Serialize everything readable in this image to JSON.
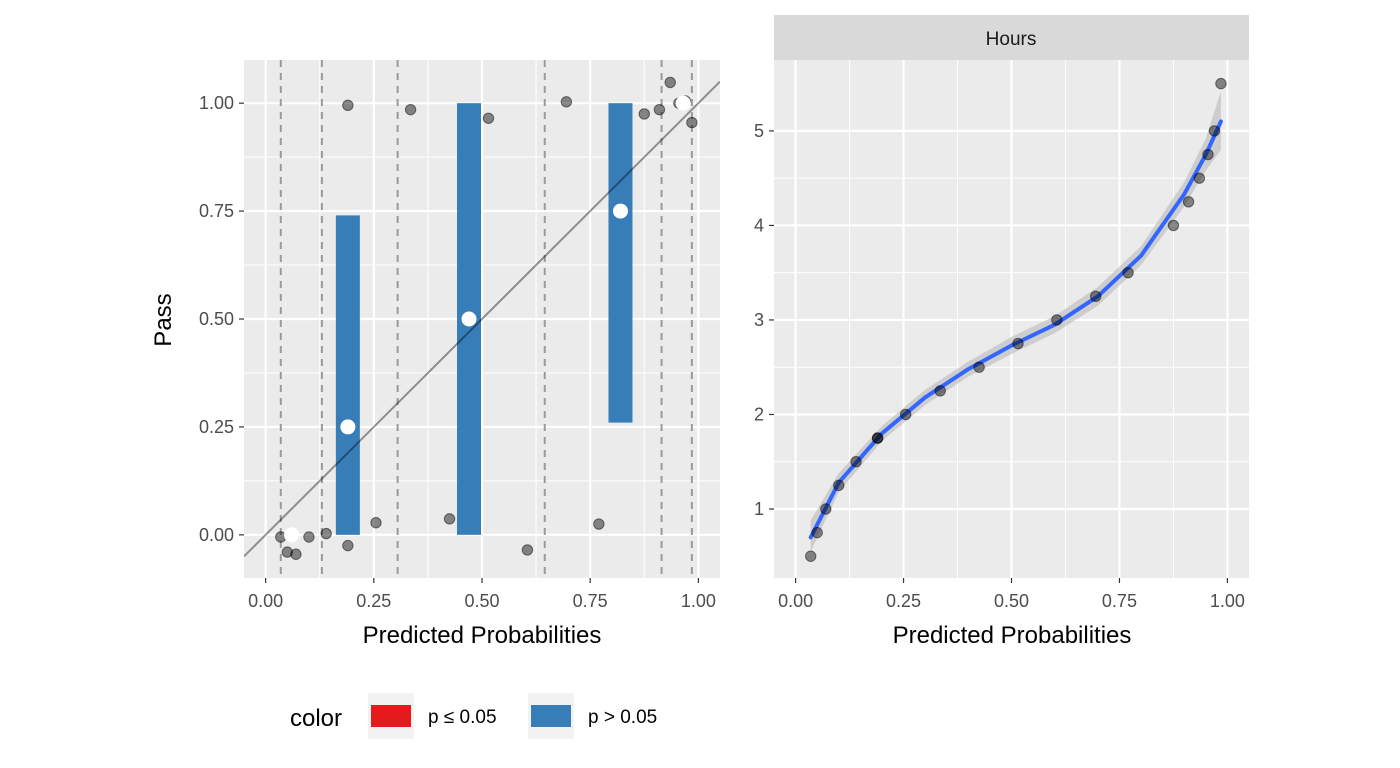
{
  "legend": {
    "title": "color",
    "items": [
      {
        "label": "p ≤ 0.05",
        "color": "#E41A1C"
      },
      {
        "label": "p > 0.05",
        "color": "#377EB8"
      }
    ]
  },
  "colors": {
    "panel_bg": "#EBEBEB",
    "grid": "#FFFFFF",
    "strip_bg": "#D9D9D9",
    "smooth_line": "#3366FF",
    "ribbon": "#BDBDBD",
    "points": "#4D4D4D"
  },
  "chart_data": [
    {
      "type": "scatter",
      "title": "",
      "xlabel": "Predicted Probabilities",
      "ylabel": "Pass",
      "xlim": [
        -0.05,
        1.05
      ],
      "ylim": [
        -0.1,
        1.1
      ],
      "x_ticks": [
        0,
        0.25,
        0.5,
        0.75,
        1
      ],
      "x_tick_labels": [
        "0.00",
        "0.25",
        "0.50",
        "0.75",
        "1.00"
      ],
      "y_ticks": [
        0,
        0.25,
        0.5,
        0.75,
        1
      ],
      "y_tick_labels": [
        "0.00",
        "0.25",
        "0.50",
        "0.75",
        "1.00"
      ],
      "grid": true,
      "reference_line": {
        "slope": 1,
        "intercept": 0
      },
      "bin_boundaries": [
        0.035,
        0.13,
        0.305,
        0.645,
        0.915,
        0.985
      ],
      "bins": [
        {
          "x": 0.06,
          "observed": 0.0,
          "lower": null,
          "upper": null,
          "group": "p > 0.05"
        },
        {
          "x": 0.19,
          "observed": 0.25,
          "lower": 0.0,
          "upper": 0.74,
          "group": "p > 0.05"
        },
        {
          "x": 0.47,
          "observed": 0.5,
          "lower": 0.0,
          "upper": 1.0,
          "group": "p > 0.05"
        },
        {
          "x": 0.82,
          "observed": 0.75,
          "lower": 0.26,
          "upper": 1.0,
          "group": "p > 0.05"
        },
        {
          "x": 0.965,
          "observed": 1.0,
          "lower": null,
          "upper": null,
          "group": "p > 0.05"
        }
      ],
      "points": [
        {
          "x": 0.035,
          "y": -0.005
        },
        {
          "x": 0.05,
          "y": -0.04
        },
        {
          "x": 0.07,
          "y": -0.045
        },
        {
          "x": 0.1,
          "y": -0.005
        },
        {
          "x": 0.14,
          "y": 0.003
        },
        {
          "x": 0.19,
          "y": 0.995
        },
        {
          "x": 0.19,
          "y": -0.025
        },
        {
          "x": 0.335,
          "y": 0.985
        },
        {
          "x": 0.255,
          "y": 0.028
        },
        {
          "x": 0.425,
          "y": 0.037
        },
        {
          "x": 0.515,
          "y": 0.965
        },
        {
          "x": 0.605,
          "y": -0.035
        },
        {
          "x": 0.695,
          "y": 1.003
        },
        {
          "x": 0.77,
          "y": 0.025
        },
        {
          "x": 0.875,
          "y": 0.975
        },
        {
          "x": 0.91,
          "y": 0.985
        },
        {
          "x": 0.935,
          "y": 1.048
        },
        {
          "x": 0.955,
          "y": 1.0
        },
        {
          "x": 0.97,
          "y": 1.005
        },
        {
          "x": 0.985,
          "y": 0.955
        }
      ]
    },
    {
      "type": "scatter",
      "strip": "Hours",
      "title": "",
      "xlabel": "Predicted Probabilities",
      "ylabel": "",
      "xlim": [
        -0.05,
        1.05
      ],
      "ylim": [
        0.27,
        5.75
      ],
      "x_ticks": [
        0,
        0.25,
        0.5,
        0.75,
        1
      ],
      "x_tick_labels": [
        "0.00",
        "0.25",
        "0.50",
        "0.75",
        "1.00"
      ],
      "y_ticks": [
        1,
        2,
        3,
        4,
        5
      ],
      "y_tick_labels": [
        "1",
        "2",
        "3",
        "4",
        "5"
      ],
      "grid": true,
      "points": [
        {
          "x": 0.035,
          "y": 0.5
        },
        {
          "x": 0.05,
          "y": 0.75
        },
        {
          "x": 0.07,
          "y": 1.0
        },
        {
          "x": 0.1,
          "y": 1.25
        },
        {
          "x": 0.14,
          "y": 1.5
        },
        {
          "x": 0.19,
          "y": 1.75
        },
        {
          "x": 0.19,
          "y": 1.75
        },
        {
          "x": 0.255,
          "y": 2.0
        },
        {
          "x": 0.335,
          "y": 2.25
        },
        {
          "x": 0.425,
          "y": 2.5
        },
        {
          "x": 0.515,
          "y": 2.75
        },
        {
          "x": 0.605,
          "y": 3.0
        },
        {
          "x": 0.695,
          "y": 3.25
        },
        {
          "x": 0.77,
          "y": 3.5
        },
        {
          "x": 0.875,
          "y": 4.0
        },
        {
          "x": 0.91,
          "y": 4.25
        },
        {
          "x": 0.935,
          "y": 4.5
        },
        {
          "x": 0.955,
          "y": 4.75
        },
        {
          "x": 0.97,
          "y": 5.0
        },
        {
          "x": 0.985,
          "y": 5.5
        }
      ],
      "smooth": [
        {
          "x": 0.035,
          "y": 0.7,
          "lo": 0.55,
          "hi": 0.88
        },
        {
          "x": 0.1,
          "y": 1.28,
          "lo": 1.18,
          "hi": 1.38
        },
        {
          "x": 0.2,
          "y": 1.8,
          "lo": 1.72,
          "hi": 1.88
        },
        {
          "x": 0.3,
          "y": 2.18,
          "lo": 2.1,
          "hi": 2.26
        },
        {
          "x": 0.4,
          "y": 2.48,
          "lo": 2.4,
          "hi": 2.56
        },
        {
          "x": 0.5,
          "y": 2.73,
          "lo": 2.64,
          "hi": 2.82
        },
        {
          "x": 0.6,
          "y": 2.95,
          "lo": 2.86,
          "hi": 3.04
        },
        {
          "x": 0.7,
          "y": 3.25,
          "lo": 3.15,
          "hi": 3.35
        },
        {
          "x": 0.8,
          "y": 3.68,
          "lo": 3.58,
          "hi": 3.78
        },
        {
          "x": 0.9,
          "y": 4.33,
          "lo": 4.2,
          "hi": 4.46
        },
        {
          "x": 0.95,
          "y": 4.75,
          "lo": 4.58,
          "hi": 4.92
        },
        {
          "x": 0.985,
          "y": 5.1,
          "lo": 4.8,
          "hi": 5.42
        }
      ]
    }
  ]
}
